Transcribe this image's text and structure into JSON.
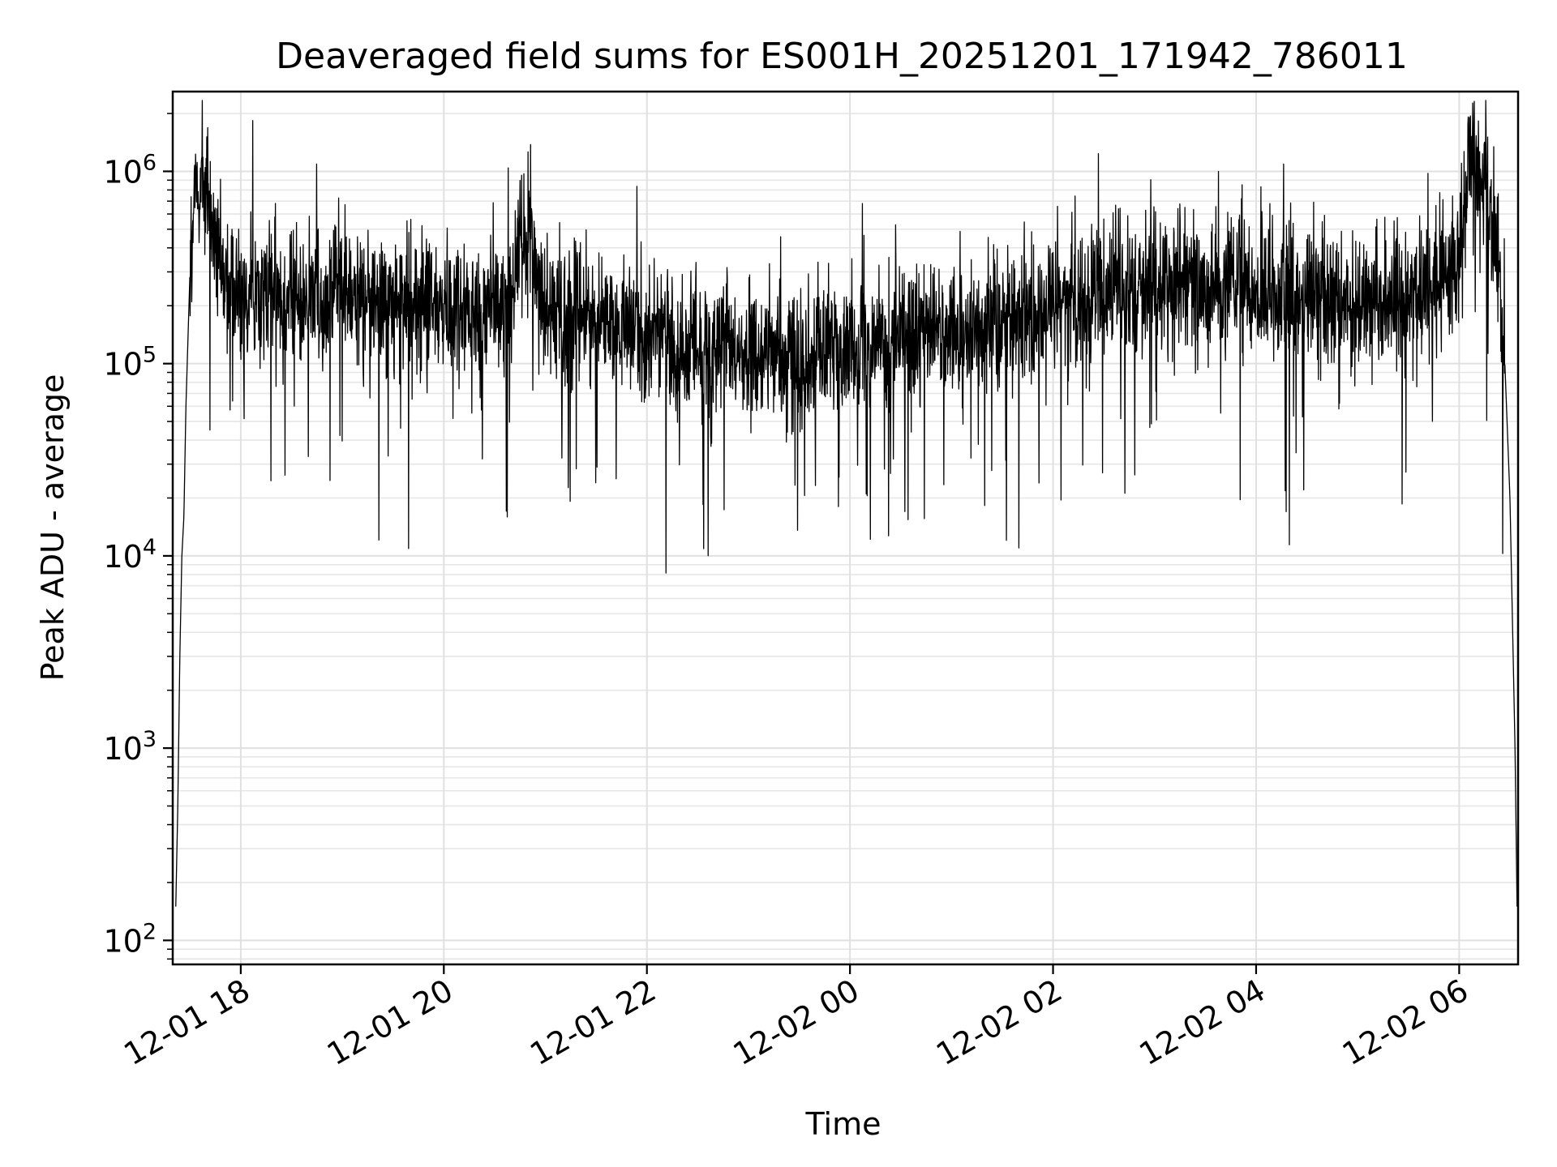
{
  "chart_data": {
    "type": "line",
    "title": "Deaveraged field sums for ES001H_20251201_171942_786011",
    "xlabel": "Time",
    "ylabel": "Peak ADU - average",
    "yscale": "log",
    "ylim": [
      75,
      2600000
    ],
    "xlim_hours": [
      17.33,
      30.58
    ],
    "grid": true,
    "legend": "none",
    "line_color": "#000000",
    "x_ticks": [
      {
        "label": "12-01 18",
        "hour": 18
      },
      {
        "label": "12-01 20",
        "hour": 20
      },
      {
        "label": "12-01 22",
        "hour": 22
      },
      {
        "label": "12-02 00",
        "hour": 24
      },
      {
        "label": "12-02 02",
        "hour": 26
      },
      {
        "label": "12-02 04",
        "hour": 28
      },
      {
        "label": "12-02 06",
        "hour": 30
      }
    ],
    "y_ticks": [
      {
        "base": "10",
        "exp": "2",
        "value": 100
      },
      {
        "base": "10",
        "exp": "3",
        "value": 1000
      },
      {
        "base": "10",
        "exp": "4",
        "value": 10000
      },
      {
        "base": "10",
        "exp": "5",
        "value": 100000
      },
      {
        "base": "10",
        "exp": "6",
        "value": 1000000
      }
    ],
    "series": [
      {
        "name": "Peak ADU - average",
        "points_hours": [
          17.36,
          17.38,
          17.4,
          17.42,
          17.44,
          17.46,
          17.5,
          17.55,
          17.6,
          17.65,
          17.7,
          17.75,
          17.8,
          17.85,
          17.9,
          17.95,
          18.0,
          18.2,
          18.4,
          18.6,
          18.8,
          19.0,
          19.2,
          19.4,
          19.6,
          19.8,
          20.0,
          20.2,
          20.4,
          20.6,
          20.8,
          20.85,
          20.9,
          21.0,
          21.2,
          21.4,
          21.6,
          21.8,
          22.0,
          22.2,
          22.4,
          22.6,
          22.8,
          23.0,
          23.2,
          23.4,
          23.6,
          23.8,
          24.0,
          24.2,
          24.4,
          24.6,
          24.8,
          25.0,
          25.2,
          25.4,
          25.6,
          25.8,
          26.0,
          26.2,
          26.4,
          26.6,
          26.8,
          27.0,
          27.2,
          27.4,
          27.6,
          27.8,
          28.0,
          28.2,
          28.4,
          28.6,
          28.8,
          29.0,
          29.2,
          29.4,
          29.6,
          29.8,
          30.0,
          30.1,
          30.2,
          30.3,
          30.35,
          30.4,
          30.45,
          30.5,
          30.55,
          30.57
        ],
        "baseline": [
          150,
          500,
          3000,
          10000,
          16000,
          60000,
          300000,
          700000,
          900000,
          850000,
          600000,
          400000,
          300000,
          280000,
          260000,
          250000,
          250000,
          240000,
          230000,
          220000,
          230000,
          230000,
          220000,
          210000,
          210000,
          200000,
          200000,
          190000,
          190000,
          200000,
          500000,
          450000,
          300000,
          200000,
          180000,
          170000,
          160000,
          150000,
          140000,
          130000,
          125000,
          120000,
          115000,
          110000,
          110000,
          110000,
          115000,
          120000,
          125000,
          130000,
          130000,
          135000,
          140000,
          145000,
          150000,
          160000,
          170000,
          180000,
          190000,
          210000,
          230000,
          250000,
          260000,
          260000,
          260000,
          255000,
          250000,
          245000,
          240000,
          230000,
          220000,
          215000,
          210000,
          205000,
          210000,
          220000,
          230000,
          250000,
          350000,
          1100000,
          1000000,
          700000,
          400000,
          250000,
          100000,
          20000,
          1000,
          150
        ]
      }
    ],
    "noise_envelope": {
      "log10_spread": 0.32,
      "dip_probability": 0.03,
      "dip_depth_log10": 0.7,
      "spike_probability": 0.012,
      "spike_height_log10": 0.45
    }
  }
}
